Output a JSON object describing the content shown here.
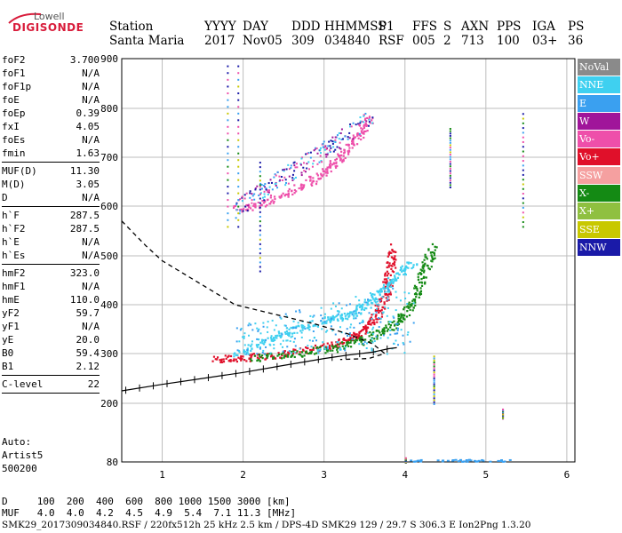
{
  "logo": {
    "top": "Lowell",
    "main": "DIGISONDE"
  },
  "header": {
    "line1": [
      "Station",
      "YYYY",
      "DAY",
      "DDD",
      "HHMMSS",
      "P1",
      "FFS",
      "S",
      "AXN",
      "PPS",
      "IGA",
      "PS"
    ],
    "line2": [
      "Santa Maria",
      "2017",
      "Nov05",
      "309",
      "034840",
      "RSF",
      "005",
      "2",
      "713",
      "100",
      "03+",
      "36"
    ]
  },
  "params": [
    {
      "label": "foF2",
      "value": "3.700"
    },
    {
      "label": "foF1",
      "value": "N/A"
    },
    {
      "label": "foF1p",
      "value": "N/A"
    },
    {
      "label": "foE",
      "value": "N/A"
    },
    {
      "label": "foEp",
      "value": "0.39"
    },
    {
      "label": "fxI",
      "value": "4.05"
    },
    {
      "label": "foEs",
      "value": "N/A"
    },
    {
      "label": "fmin",
      "value": "1.63"
    },
    {
      "sep": true
    },
    {
      "label": "MUF(D)",
      "value": "11.30"
    },
    {
      "label": "M(D)",
      "value": "3.05"
    },
    {
      "label": "D",
      "value": "N/A"
    },
    {
      "sep": true
    },
    {
      "label": "h`F",
      "value": "287.5"
    },
    {
      "label": "h`F2",
      "value": "287.5"
    },
    {
      "label": "h`E",
      "value": "N/A"
    },
    {
      "label": "h`Es",
      "value": "N/A"
    },
    {
      "sep": true
    },
    {
      "label": "hmF2",
      "value": "323.0"
    },
    {
      "label": "hmF1",
      "value": "N/A"
    },
    {
      "label": "hmE",
      "value": "110.0"
    },
    {
      "label": "yF2",
      "value": "59.7"
    },
    {
      "label": "yF1",
      "value": "N/A"
    },
    {
      "label": "yE",
      "value": "20.0"
    },
    {
      "label": "B0",
      "value": "59.4"
    },
    {
      "label": "B1",
      "value": "2.12"
    },
    {
      "sep": true
    },
    {
      "label": "C-level",
      "value": "22"
    },
    {
      "sep": true
    }
  ],
  "auto": [
    "Auto:",
    "Artist5",
    "500200"
  ],
  "legend": [
    {
      "label": "NoVal",
      "color": "#8a8a8a"
    },
    {
      "label": "NNE",
      "color": "#3fd0f0"
    },
    {
      "label": "E",
      "color": "#3aa0f0"
    },
    {
      "label": "W",
      "color": "#a0159a"
    },
    {
      "label": "Vo-",
      "color": "#ee4faa"
    },
    {
      "label": "Vo+",
      "color": "#e0102a"
    },
    {
      "label": "SSW",
      "color": "#f5a0a0"
    },
    {
      "label": "X-",
      "color": "#148a14"
    },
    {
      "label": "X+",
      "color": "#8fc040"
    },
    {
      "label": "SSE",
      "color": "#c8c800"
    },
    {
      "label": "NNW",
      "color": "#1a1aa8"
    }
  ],
  "muf_table": {
    "d_row": "D     100  200  400  600  800 1000 1500 3000 [km]",
    "muf_row": "MUF   4.0  4.0  4.2  4.5  4.9  5.4  7.1 11.3 [MHz]"
  },
  "footer": "SMK29_2017309034840.RSF / 220fx512h 25 kHz 2.5 km / DPS-4D SMK29 129 / 29.7 S 306.3 E Ion2Png 1.3.20",
  "chart_data": {
    "type": "scatter",
    "xlim": [
      0.5,
      6.1
    ],
    "ylim": [
      80,
      900
    ],
    "xticks": [
      1,
      2,
      3,
      4,
      5,
      6
    ],
    "yticks": [
      80,
      200,
      300,
      400,
      500,
      600,
      700,
      800,
      900
    ],
    "grid": true,
    "xlabel": "",
    "ylabel": "",
    "series": [
      {
        "name": "Vo+",
        "points": [
          [
            1.65,
            290
          ],
          [
            2.0,
            292
          ],
          [
            2.5,
            300
          ],
          [
            3.0,
            315
          ],
          [
            3.3,
            330
          ],
          [
            3.5,
            350
          ],
          [
            3.65,
            380
          ],
          [
            3.75,
            420
          ],
          [
            3.8,
            470
          ],
          [
            3.85,
            520
          ]
        ]
      },
      {
        "name": "X-",
        "points": [
          [
            2.1,
            292
          ],
          [
            2.6,
            300
          ],
          [
            3.1,
            312
          ],
          [
            3.5,
            330
          ],
          [
            3.8,
            355
          ],
          [
            4.0,
            385
          ],
          [
            4.15,
            430
          ],
          [
            4.25,
            480
          ],
          [
            4.35,
            520
          ]
        ]
      },
      {
        "name": "NNE",
        "points": [
          [
            1.9,
            300
          ],
          [
            2.3,
            330
          ],
          [
            2.6,
            350
          ],
          [
            3.0,
            370
          ],
          [
            3.3,
            380
          ],
          [
            3.5,
            400
          ],
          [
            3.7,
            430
          ],
          [
            3.9,
            460
          ],
          [
            4.1,
            490
          ]
        ]
      },
      {
        "name": "Vo-",
        "points": [
          [
            1.9,
            595
          ],
          [
            2.3,
            610
          ],
          [
            2.7,
            640
          ],
          [
            3.0,
            670
          ],
          [
            3.2,
            700
          ],
          [
            3.4,
            740
          ],
          [
            3.55,
            780
          ]
        ]
      }
    ],
    "profile_curve": [
      [
        0.5,
        570
      ],
      [
        0.8,
        520
      ],
      [
        1.0,
        490
      ],
      [
        1.4,
        450
      ],
      [
        1.9,
        400
      ],
      [
        2.4,
        380
      ],
      [
        2.9,
        360
      ],
      [
        3.3,
        340
      ],
      [
        3.6,
        320
      ],
      [
        3.75,
        300
      ],
      [
        3.55,
        290
      ],
      [
        3.2,
        288
      ]
    ],
    "virtual_height_curve": [
      [
        0.5,
        225
      ],
      [
        1.0,
        238
      ],
      [
        1.5,
        250
      ],
      [
        2.0,
        262
      ],
      [
        2.5,
        276
      ],
      [
        3.0,
        290
      ],
      [
        3.3,
        297
      ],
      [
        3.6,
        303
      ],
      [
        3.8,
        310
      ],
      [
        3.9,
        312
      ]
    ],
    "axis_note": "Non-uniform y-axis scale (lower region compressed)"
  }
}
